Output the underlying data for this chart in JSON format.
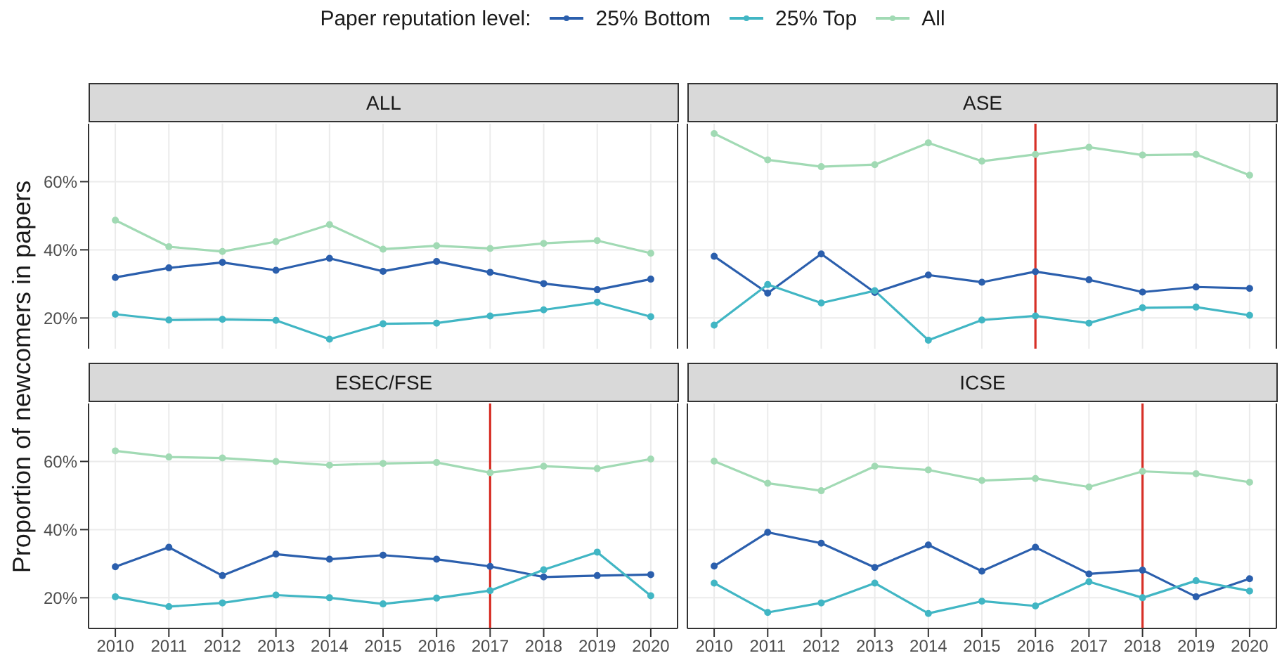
{
  "chart_data": [
    {
      "type": "line",
      "title": "ALL",
      "ylabel": "Proportion of newcomers in papers",
      "legend_title": "Paper reputation level:",
      "legend": "top",
      "grid": true,
      "marker": "circle",
      "tick_labels": "y",
      "x": [
        2010,
        2011,
        2012,
        2013,
        2014,
        2015,
        2016,
        2017,
        2018,
        2019,
        2020
      ],
      "xlim": [
        2009.5,
        2020.5
      ],
      "xticks": [
        {
          "value": 2010,
          "label": null
        },
        {
          "value": 2011,
          "label": null
        },
        {
          "value": 2012,
          "label": null
        },
        {
          "value": 2013,
          "label": null
        },
        {
          "value": 2014,
          "label": null
        },
        {
          "value": 2015,
          "label": null
        },
        {
          "value": 2016,
          "label": null
        },
        {
          "value": 2017,
          "label": null
        },
        {
          "value": 2018,
          "label": null
        },
        {
          "value": 2019,
          "label": null
        },
        {
          "value": 2020,
          "label": null
        }
      ],
      "ylim": [
        11,
        77
      ],
      "yticks": [
        {
          "value": 20,
          "label": "20%"
        },
        {
          "value": 40,
          "label": "40%"
        },
        {
          "value": 60,
          "label": "60%"
        }
      ],
      "series": [
        {
          "name": "25% Bottom",
          "color": "#2b5fad",
          "values": [
            31.9,
            34.7,
            36.3,
            34.0,
            37.5,
            33.7,
            36.6,
            33.4,
            30.1,
            28.3,
            31.4
          ]
        },
        {
          "name": "25% Top",
          "color": "#41b6c4",
          "values": [
            21.1,
            19.4,
            19.6,
            19.3,
            13.8,
            18.3,
            18.5,
            20.6,
            22.4,
            24.6,
            20.4
          ]
        },
        {
          "name": "All",
          "color": "#a1dab4",
          "values": [
            48.7,
            40.9,
            39.5,
            42.4,
            47.4,
            40.2,
            41.2,
            40.4,
            41.9,
            42.7,
            39.0
          ]
        }
      ]
    },
    {
      "type": "line",
      "title": "ASE",
      "grid": true,
      "marker": "circle",
      "tick_labels": false,
      "x": [
        2010,
        2011,
        2012,
        2013,
        2014,
        2015,
        2016,
        2017,
        2018,
        2019,
        2020
      ],
      "xlim": [
        2009.5,
        2020.5
      ],
      "xticks": [
        {
          "value": 2010,
          "label": null
        },
        {
          "value": 2011,
          "label": null
        },
        {
          "value": 2012,
          "label": null
        },
        {
          "value": 2013,
          "label": null
        },
        {
          "value": 2014,
          "label": null
        },
        {
          "value": 2015,
          "label": null
        },
        {
          "value": 2016,
          "label": null
        },
        {
          "value": 2017,
          "label": null
        },
        {
          "value": 2018,
          "label": null
        },
        {
          "value": 2019,
          "label": null
        },
        {
          "value": 2020,
          "label": null
        }
      ],
      "ylim": [
        11,
        77
      ],
      "yticks": [
        {
          "value": 20,
          "label": null
        },
        {
          "value": 40,
          "label": null
        },
        {
          "value": 60,
          "label": null
        }
      ],
      "ref_lines": [
        {
          "axis": "x",
          "value": 2016,
          "color": "#d73027"
        }
      ],
      "series": [
        {
          "color": "#2b5fad",
          "values": [
            38.1,
            27.3,
            38.8,
            27.5,
            32.6,
            30.5,
            33.6,
            31.2,
            27.6,
            29.1,
            28.7
          ]
        },
        {
          "color": "#41b6c4",
          "values": [
            17.9,
            29.8,
            24.4,
            28.0,
            13.5,
            19.4,
            20.6,
            18.5,
            23.0,
            23.2,
            20.8
          ]
        },
        {
          "color": "#a1dab4",
          "values": [
            74.1,
            66.4,
            64.4,
            65.0,
            71.4,
            66.0,
            68.0,
            70.1,
            67.8,
            68.0,
            61.9
          ]
        }
      ]
    },
    {
      "type": "line",
      "title": "ESEC/FSE",
      "grid": true,
      "marker": "circle",
      "x": [
        2010,
        2011,
        2012,
        2013,
        2014,
        2015,
        2016,
        2017,
        2018,
        2019,
        2020
      ],
      "xlim": [
        2009.5,
        2020.5
      ],
      "xticks": [
        2010,
        2011,
        2012,
        2013,
        2014,
        2015,
        2016,
        2017,
        2018,
        2019,
        2020
      ],
      "ylim": [
        11,
        77
      ],
      "yticks": [
        {
          "value": 20,
          "label": "20%"
        },
        {
          "value": 40,
          "label": "40%"
        },
        {
          "value": 60,
          "label": "60%"
        }
      ],
      "ref_lines": [
        {
          "axis": "x",
          "value": 2017,
          "color": "#d73027"
        }
      ],
      "series": [
        {
          "color": "#2b5fad",
          "values": [
            29.1,
            34.8,
            26.5,
            32.8,
            31.3,
            32.5,
            31.3,
            29.2,
            26.1,
            26.5,
            26.8
          ]
        },
        {
          "color": "#41b6c4",
          "values": [
            20.3,
            17.4,
            18.5,
            20.8,
            20.0,
            18.2,
            19.9,
            22.1,
            28.2,
            33.4,
            20.6
          ]
        },
        {
          "color": "#a1dab4",
          "values": [
            63.1,
            61.3,
            61.0,
            60.0,
            58.9,
            59.4,
            59.7,
            56.7,
            58.6,
            57.9,
            60.7
          ]
        }
      ]
    },
    {
      "type": "line",
      "title": "ICSE",
      "grid": true,
      "marker": "circle",
      "tick_labels": "x",
      "x": [
        2010,
        2011,
        2012,
        2013,
        2014,
        2015,
        2016,
        2017,
        2018,
        2019,
        2020
      ],
      "xlim": [
        2009.5,
        2020.5
      ],
      "xticks": [
        2010,
        2011,
        2012,
        2013,
        2014,
        2015,
        2016,
        2017,
        2018,
        2019,
        2020
      ],
      "ylim": [
        11,
        77
      ],
      "yticks": [
        {
          "value": 20,
          "label": null
        },
        {
          "value": 40,
          "label": null
        },
        {
          "value": 60,
          "label": null
        }
      ],
      "ref_lines": [
        {
          "axis": "x",
          "value": 2018,
          "color": "#d73027"
        }
      ],
      "series": [
        {
          "color": "#2b5fad",
          "values": [
            29.3,
            39.2,
            36.0,
            28.9,
            35.5,
            27.8,
            34.8,
            27.0,
            28.1,
            20.3,
            25.6
          ]
        },
        {
          "color": "#41b6c4",
          "values": [
            24.3,
            15.7,
            18.5,
            24.3,
            15.4,
            19.0,
            17.6,
            24.7,
            20.0,
            25.0,
            22.0
          ]
        },
        {
          "color": "#a1dab4",
          "values": [
            60.1,
            53.6,
            51.4,
            58.6,
            57.5,
            54.4,
            55.0,
            52.5,
            57.1,
            56.4,
            53.9
          ]
        }
      ]
    }
  ]
}
